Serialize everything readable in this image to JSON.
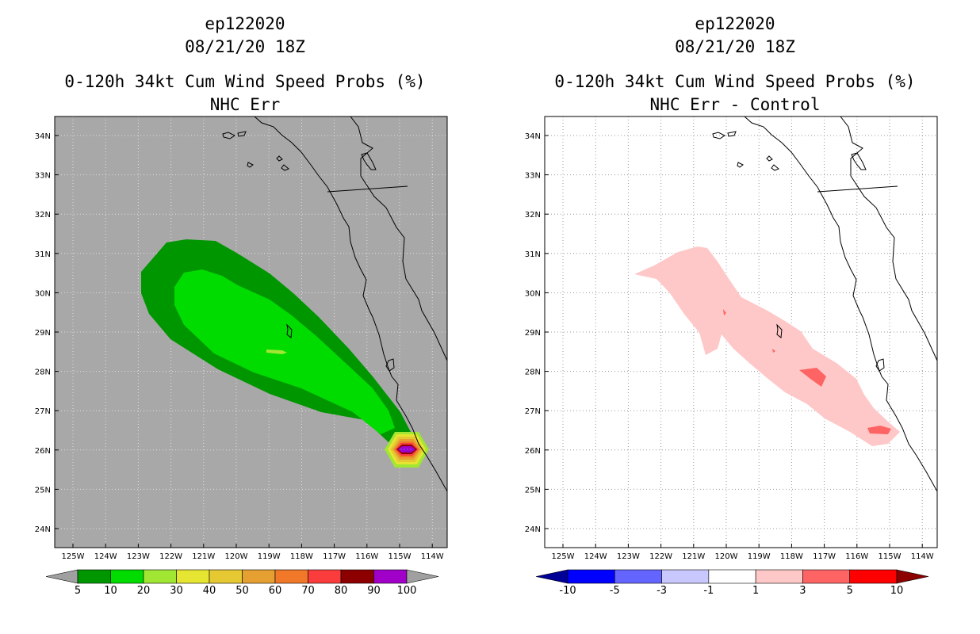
{
  "panels": [
    {
      "id": "left",
      "storm": "ep122020",
      "datetime": "08/21/20 18Z",
      "product": "0-120h 34kt Cum Wind Speed Probs (%)",
      "subtitle": "NHC Err",
      "background": "#a8a8a8",
      "colorbar": {
        "labels": [
          "5",
          "10",
          "20",
          "30",
          "40",
          "50",
          "60",
          "70",
          "80",
          "90",
          "100"
        ],
        "colors": [
          "#009600",
          "#00dc00",
          "#a0e632",
          "#e6e632",
          "#e6c832",
          "#e6a032",
          "#f07828",
          "#fa3c3c",
          "#8c0000",
          "#a000c8"
        ],
        "end_low": "#a0a0a0",
        "end_high": "#a0a0a0"
      }
    },
    {
      "id": "right",
      "storm": "ep122020",
      "datetime": "08/21/20 18Z",
      "product": "0-120h 34kt Cum Wind Speed Probs (%)",
      "subtitle": "NHC Err - Control",
      "background": "#ffffff",
      "colorbar": {
        "labels": [
          "-10",
          "-5",
          "-3",
          "-1",
          "1",
          "3",
          "5",
          "10"
        ],
        "colors": [
          "#0000ff",
          "#6464ff",
          "#c8c8ff",
          "#ffffff",
          "#ffc8c8",
          "#ff6464",
          "#ff0000"
        ],
        "end_low": "#000096",
        "end_high": "#8c0000"
      }
    }
  ],
  "map": {
    "lon_labels": [
      "125W",
      "124W",
      "123W",
      "122W",
      "121W",
      "120W",
      "119W",
      "118W",
      "117W",
      "116W",
      "115W",
      "114W"
    ],
    "lat_labels": [
      "34N",
      "33N",
      "32N",
      "31N",
      "30N",
      "29N",
      "28N",
      "27N",
      "26N",
      "25N",
      "24N"
    ]
  }
}
